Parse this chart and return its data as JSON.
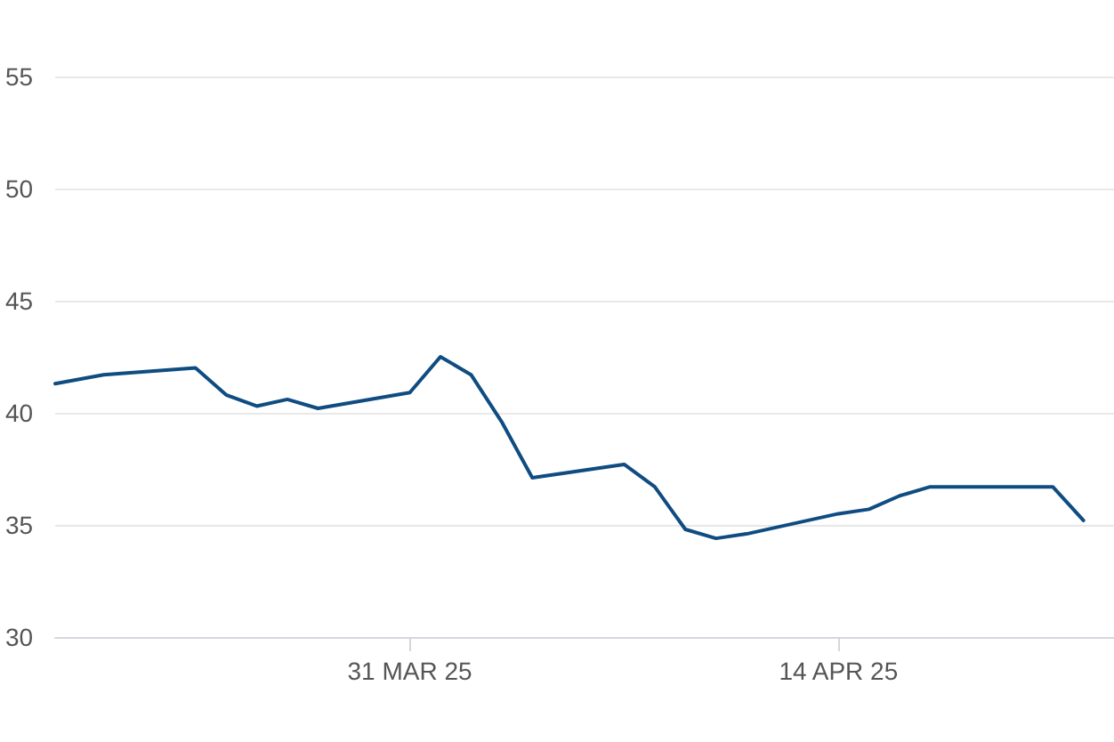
{
  "chart_data": {
    "type": "line",
    "x": [
      "2025-03-19T10:00",
      "2025-03-21",
      "2025-03-24",
      "2025-03-25",
      "2025-03-26",
      "2025-03-27",
      "2025-03-28",
      "2025-03-31",
      "2025-04-01",
      "2025-04-02",
      "2025-04-03",
      "2025-04-04",
      "2025-04-07",
      "2025-04-08",
      "2025-04-09",
      "2025-04-10",
      "2025-04-11",
      "2025-04-14",
      "2025-04-15",
      "2025-04-16",
      "2025-04-17",
      "2025-04-21",
      "2025-04-22"
    ],
    "values": [
      41.3,
      41.7,
      42.0,
      40.8,
      40.3,
      40.6,
      40.2,
      40.9,
      42.5,
      41.7,
      39.6,
      37.1,
      37.7,
      36.7,
      34.8,
      34.4,
      34.6,
      35.5,
      35.7,
      36.3,
      36.7,
      36.7,
      35.2
    ],
    "color": "#0f4c81",
    "xlim": [
      "2025-03-19T10:00",
      "2025-04-23"
    ],
    "xticks": [
      {
        "value": "2025-03-31",
        "label": "31 MAR 25"
      },
      {
        "value": "2025-04-14",
        "label": "14 APR 25"
      }
    ],
    "ylim": [
      30,
      55
    ],
    "yticks": [
      30,
      35,
      40,
      45,
      50,
      55
    ],
    "grid": "y"
  }
}
